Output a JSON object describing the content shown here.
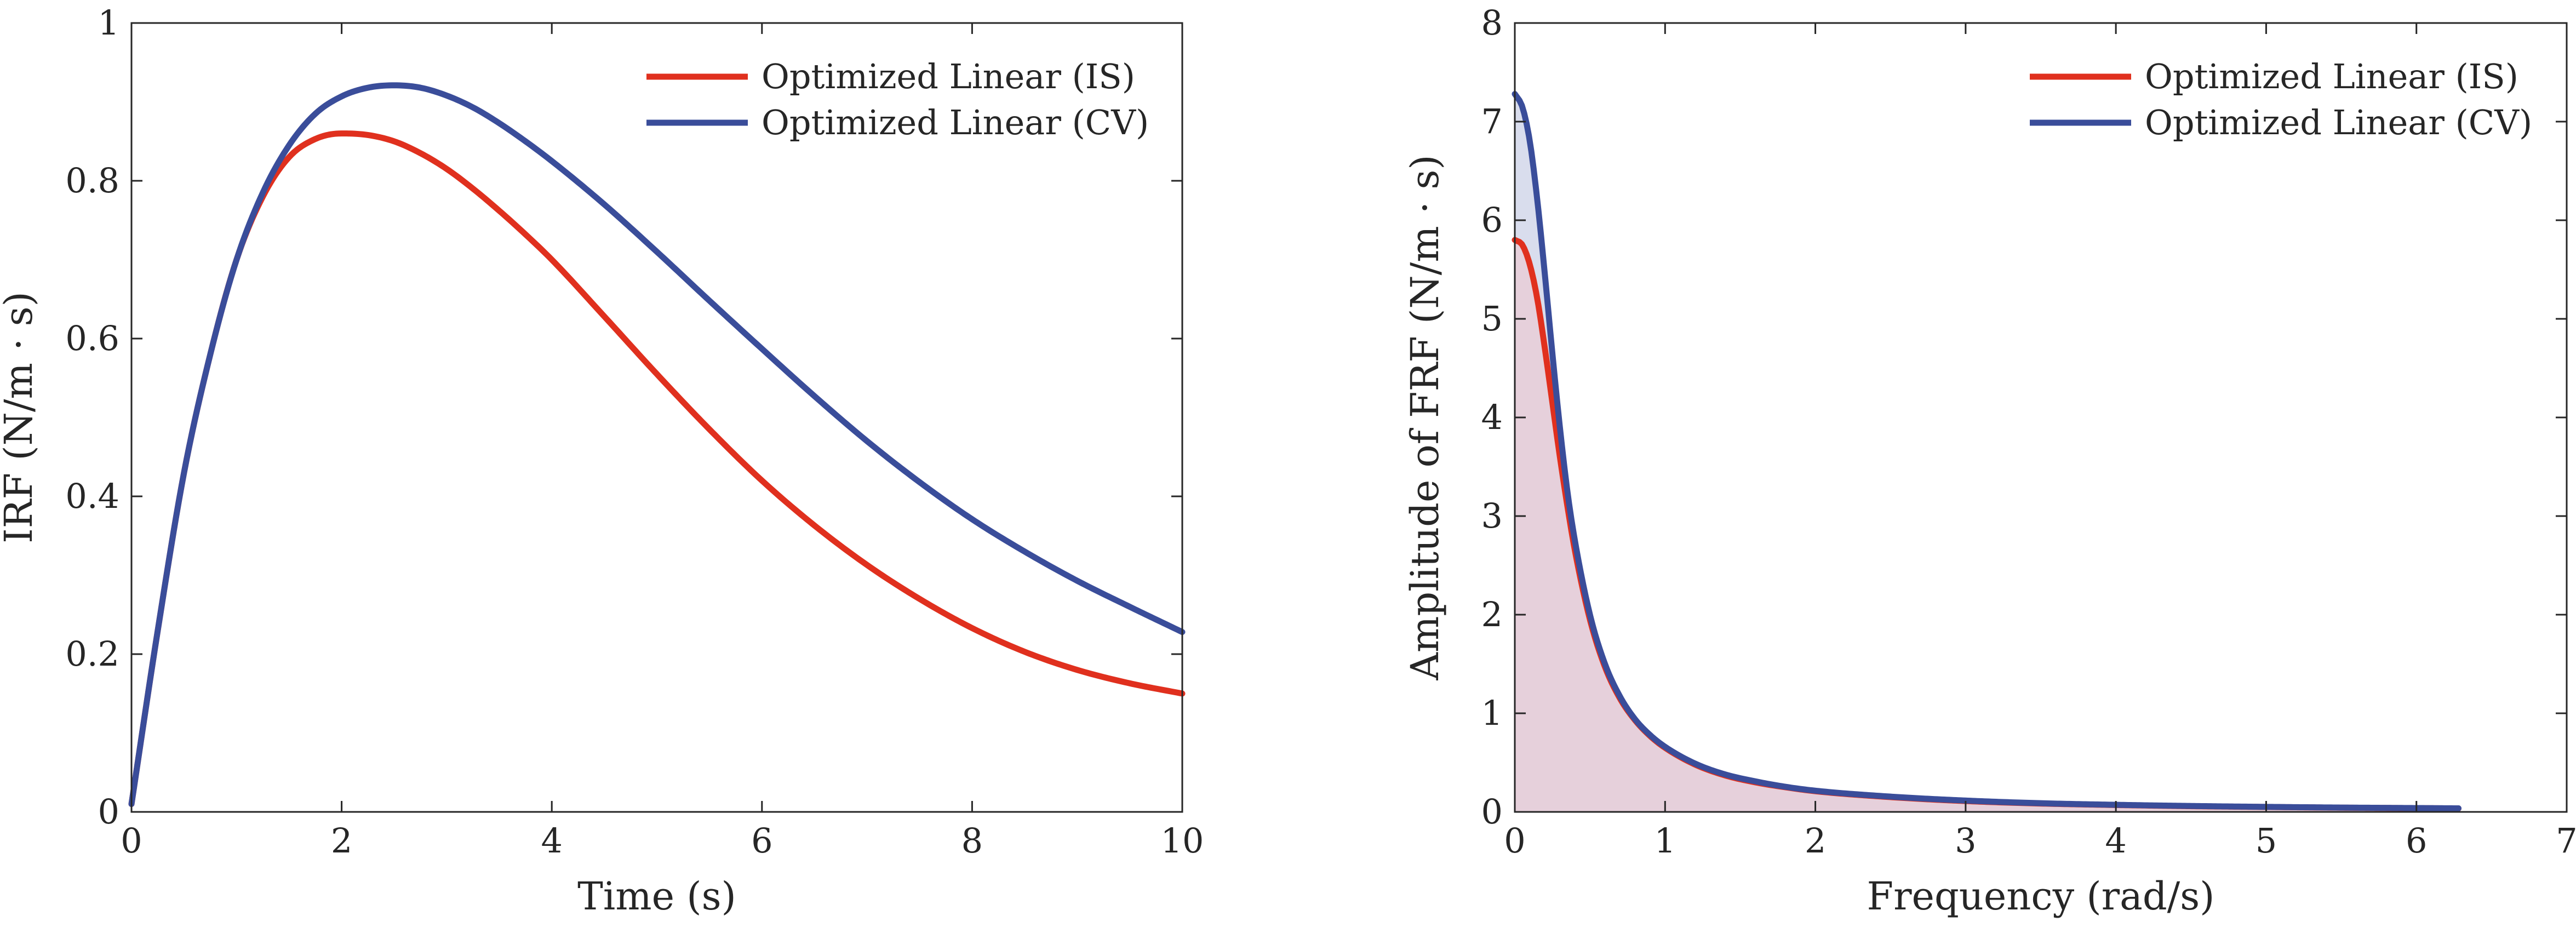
{
  "colors": {
    "is": "#e0301e",
    "cv": "#3a4d9a",
    "fill_is": "#e6d0db",
    "fill_cv": "#d9dded",
    "axis": "#262626"
  },
  "chart_data": [
    {
      "type": "line",
      "title": "",
      "xlabel": "Time (s)",
      "ylabel": "IRF (N/m · s)",
      "xlim": [
        0,
        10
      ],
      "ylim": [
        0,
        1
      ],
      "xticks": [
        0,
        2,
        4,
        6,
        8,
        10
      ],
      "yticks": [
        0,
        0.2,
        0.4,
        0.6,
        0.8,
        1
      ],
      "xtick_labels": [
        "0",
        "2",
        "4",
        "6",
        "8",
        "10"
      ],
      "ytick_labels": [
        "0",
        "0.2",
        "0.4",
        "0.6",
        "0.8",
        "1"
      ],
      "legend_position": "top-right",
      "x": [
        0,
        0.25,
        0.5,
        0.75,
        1,
        1.25,
        1.5,
        1.75,
        2,
        2.25,
        2.5,
        2.75,
        3,
        3.25,
        3.5,
        3.75,
        4,
        4.5,
        5,
        5.5,
        6,
        6.5,
        7,
        7.5,
        8,
        8.5,
        9,
        9.5,
        10
      ],
      "series": [
        {
          "name": "Optimized Linear (IS)",
          "color_key": "is",
          "values": [
            0.01,
            0.23,
            0.43,
            0.58,
            0.7,
            0.78,
            0.83,
            0.853,
            0.86,
            0.858,
            0.85,
            0.835,
            0.815,
            0.79,
            0.762,
            0.732,
            0.7,
            0.628,
            0.555,
            0.485,
            0.42,
            0.363,
            0.313,
            0.27,
            0.233,
            0.203,
            0.18,
            0.163,
            0.15
          ]
        },
        {
          "name": "Optimized Linear (CV)",
          "color_key": "cv",
          "values": [
            0.01,
            0.23,
            0.43,
            0.58,
            0.7,
            0.785,
            0.845,
            0.885,
            0.907,
            0.918,
            0.921,
            0.918,
            0.908,
            0.893,
            0.873,
            0.85,
            0.825,
            0.77,
            0.71,
            0.648,
            0.587,
            0.527,
            0.47,
            0.418,
            0.371,
            0.33,
            0.293,
            0.26,
            0.228
          ]
        }
      ]
    },
    {
      "type": "area",
      "title": "",
      "xlabel": "Frequency (rad/s)",
      "ylabel": "Amplitude of FRF (N/m · s)",
      "xlim": [
        0,
        7
      ],
      "ylim": [
        0,
        8
      ],
      "xticks": [
        0,
        1,
        2,
        3,
        4,
        5,
        6,
        7
      ],
      "yticks": [
        0,
        1,
        2,
        3,
        4,
        5,
        6,
        7,
        8
      ],
      "xtick_labels": [
        "0",
        "1",
        "2",
        "3",
        "4",
        "5",
        "6",
        "7"
      ],
      "ytick_labels": [
        "0",
        "1",
        "2",
        "3",
        "4",
        "5",
        "6",
        "7",
        "8"
      ],
      "legend_position": "top-right",
      "x": [
        0,
        0.05,
        0.1,
        0.15,
        0.2,
        0.25,
        0.3,
        0.35,
        0.4,
        0.5,
        0.6,
        0.7,
        0.8,
        0.9,
        1.0,
        1.2,
        1.4,
        1.6,
        1.8,
        2.0,
        2.5,
        3.0,
        3.5,
        4.0,
        4.5,
        5.0,
        5.5,
        6.0,
        6.28
      ],
      "series": [
        {
          "name": "Optimized Linear (IS)",
          "color_key": "is",
          "values": [
            5.8,
            5.75,
            5.55,
            5.2,
            4.7,
            4.15,
            3.6,
            3.1,
            2.65,
            1.95,
            1.47,
            1.15,
            0.93,
            0.77,
            0.65,
            0.48,
            0.37,
            0.3,
            0.25,
            0.21,
            0.15,
            0.11,
            0.085,
            0.07,
            0.058,
            0.05,
            0.043,
            0.038,
            0.035
          ]
        },
        {
          "name": "Optimized Linear (CV)",
          "color_key": "cv",
          "values": [
            7.28,
            7.15,
            6.8,
            6.2,
            5.45,
            4.65,
            3.9,
            3.25,
            2.75,
            2.0,
            1.5,
            1.17,
            0.94,
            0.78,
            0.66,
            0.49,
            0.38,
            0.31,
            0.255,
            0.215,
            0.155,
            0.115,
            0.088,
            0.072,
            0.06,
            0.051,
            0.044,
            0.039,
            0.036
          ]
        }
      ]
    }
  ]
}
